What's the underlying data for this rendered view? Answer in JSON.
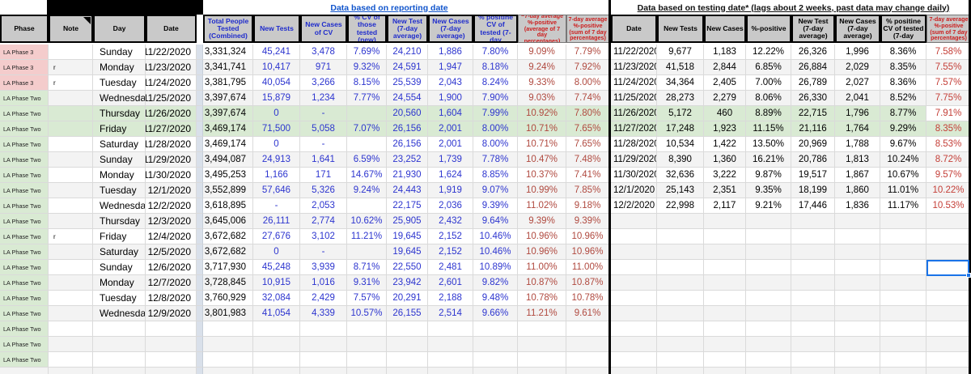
{
  "colors": {
    "header_bg": "#c9c9c9",
    "stripe": "#f3f3f3",
    "green_row": "#d9ead3",
    "pink_phase": "#f4cccc",
    "green_phase": "#d9ead3",
    "blue_text": "#2d35cf",
    "left_red_text": "#b0493f",
    "right_red_text": "#c43e37",
    "header_red_text": "#cc1d1d",
    "title_blue": "#1155cc",
    "selection_blue": "#1a73e8"
  },
  "left_section": {
    "title": "Data based on reporting date",
    "headers": [
      "Phase",
      "Note",
      "Day",
      "Date",
      "Total People Tested (Combined)",
      "New Tests",
      "New Cases of CV",
      "% CV of those tested (new)",
      "New Test (7-day average)",
      "New Cases (7-day average)",
      "% positine CV of tested (7-day",
      "~7-day average %-positive (average of 7 day percentages)",
      "7-day average %-positive (sum of 7 day percentages)"
    ],
    "rows": [
      [
        "LA Phase 3",
        "",
        "Sunday",
        "11/22/2020",
        "3,331,324",
        "45,241",
        "3,478",
        "7.69%",
        "24,210",
        "1,886",
        "7.80%",
        "9.09%",
        "7.79%"
      ],
      [
        "LA Phase 3",
        "r",
        "Monday",
        "11/23/2020",
        "3,341,741",
        "10,417",
        "971",
        "9.32%",
        "24,591",
        "1,947",
        "8.18%",
        "9.24%",
        "7.92%"
      ],
      [
        "LA Phase 3",
        "r",
        "Tuesday",
        "11/24/2020",
        "3,381,795",
        "40,054",
        "3,266",
        "8.15%",
        "25,539",
        "2,043",
        "8.24%",
        "9.33%",
        "8.00%"
      ],
      [
        "LA Phase Two",
        "",
        "Wednesday",
        "11/25/2020",
        "3,397,674",
        "15,879",
        "1,234",
        "7.77%",
        "24,554",
        "1,900",
        "7.90%",
        "9.03%",
        "7.74%"
      ],
      [
        "LA Phase Two",
        "",
        "Thursday",
        "11/26/2020",
        "3,397,674",
        "0",
        "-",
        "",
        "20,560",
        "1,604",
        "7.99%",
        "10.92%",
        "7.80%"
      ],
      [
        "LA Phase Two",
        "",
        "Friday",
        "11/27/2020",
        "3,469,174",
        "71,500",
        "5,058",
        "7.07%",
        "26,156",
        "2,001",
        "8.00%",
        "10.71%",
        "7.65%"
      ],
      [
        "LA Phase Two",
        "",
        "Saturday",
        "11/28/2020",
        "3,469,174",
        "0",
        "-",
        "",
        "26,156",
        "2,001",
        "8.00%",
        "10.71%",
        "7.65%"
      ],
      [
        "LA Phase Two",
        "",
        "Sunday",
        "11/29/2020",
        "3,494,087",
        "24,913",
        "1,641",
        "6.59%",
        "23,252",
        "1,739",
        "7.78%",
        "10.47%",
        "7.48%"
      ],
      [
        "LA Phase Two",
        "",
        "Monday",
        "11/30/2020",
        "3,495,253",
        "1,166",
        "171",
        "14.67%",
        "21,930",
        "1,624",
        "8.85%",
        "10.37%",
        "7.41%"
      ],
      [
        "LA Phase Two",
        "",
        "Tuesday",
        "12/1/2020",
        "3,552,899",
        "57,646",
        "5,326",
        "9.24%",
        "24,443",
        "1,919",
        "9.07%",
        "10.99%",
        "7.85%"
      ],
      [
        "LA Phase Two",
        "",
        "Wednesday",
        "12/2/2020",
        "3,618,895",
        "-",
        "2,053",
        "",
        "22,175",
        "2,036",
        "9.39%",
        "11.02%",
        "9.18%"
      ],
      [
        "LA Phase Two",
        "",
        "Thursday",
        "12/3/2020",
        "3,645,006",
        "26,111",
        "2,774",
        "10.62%",
        "25,905",
        "2,432",
        "9.64%",
        "9.39%",
        "9.39%"
      ],
      [
        "LA Phase Two",
        "r",
        "Friday",
        "12/4/2020",
        "3,672,682",
        "27,676",
        "3,102",
        "11.21%",
        "19,645",
        "2,152",
        "10.46%",
        "10.96%",
        "10.96%"
      ],
      [
        "LA Phase Two",
        "",
        "Saturday",
        "12/5/2020",
        "3,672,682",
        "0",
        "-",
        "",
        "19,645",
        "2,152",
        "10.46%",
        "10.96%",
        "10.96%"
      ],
      [
        "LA Phase Two",
        "",
        "Sunday",
        "12/6/2020",
        "3,717,930",
        "45,248",
        "3,939",
        "8.71%",
        "22,550",
        "2,481",
        "10.89%",
        "11.00%",
        "11.00%"
      ],
      [
        "LA Phase Two",
        "",
        "Monday",
        "12/7/2020",
        "3,728,845",
        "10,915",
        "1,016",
        "9.31%",
        "23,942",
        "2,601",
        "9.82%",
        "10.87%",
        "10.87%"
      ],
      [
        "LA Phase Two",
        "",
        "Tuesday",
        "12/8/2020",
        "3,760,929",
        "32,084",
        "2,429",
        "7.57%",
        "20,291",
        "2,188",
        "9.48%",
        "10.78%",
        "10.78%"
      ],
      [
        "LA Phase Two",
        "",
        "Wednesday",
        "12/9/2020",
        "3,801,983",
        "41,054",
        "4,339",
        "10.57%",
        "26,155",
        "2,514",
        "9.66%",
        "11.21%",
        "9.61%"
      ],
      [
        "LA Phase Two",
        "",
        "",
        "",
        "",
        "",
        "",
        "",
        "",
        "",
        "",
        "",
        ""
      ],
      [
        "LA Phase Two",
        "",
        "",
        "",
        "",
        "",
        "",
        "",
        "",
        "",
        "",
        "",
        ""
      ],
      [
        "LA Phase Two",
        "",
        "",
        "",
        "",
        "",
        "",
        "",
        "",
        "",
        "",
        "",
        ""
      ],
      [
        "",
        "",
        "",
        "",
        "",
        "",
        "",
        "",
        "",
        "",
        "",
        "",
        ""
      ]
    ],
    "green_row_indexes": [
      4,
      5
    ]
  },
  "right_section": {
    "title": "Data based on testing date*  (lags about 2 weeks, past data may change daily)",
    "headers": [
      "Date",
      "New Tests",
      "New Cases",
      "%-positive",
      "New Test (7-day average)",
      "New Cases (7-day average)",
      "% positine CV of tested (7-day",
      "7-day average %-positive (sum of 7 day percentages)"
    ],
    "rows": [
      [
        "11/22/2020",
        "9,677",
        "1,183",
        "12.22%",
        "26,326",
        "1,996",
        "8.36%",
        "7.58%"
      ],
      [
        "11/23/2020",
        "41,518",
        "2,844",
        "6.85%",
        "26,884",
        "2,029",
        "8.35%",
        "7.55%"
      ],
      [
        "11/24/2020",
        "34,364",
        "2,405",
        "7.00%",
        "26,789",
        "2,027",
        "8.36%",
        "7.57%"
      ],
      [
        "11/25/2020",
        "28,273",
        "2,279",
        "8.06%",
        "26,330",
        "2,041",
        "8.52%",
        "7.75%"
      ],
      [
        "11/26/2020",
        "5,172",
        "460",
        "8.89%",
        "22,715",
        "1,796",
        "8.77%",
        "7.91%"
      ],
      [
        "11/27/2020",
        "17,248",
        "1,923",
        "11.15%",
        "21,116",
        "1,764",
        "9.29%",
        "8.35%"
      ],
      [
        "11/28/2020",
        "10,534",
        "1,422",
        "13.50%",
        "20,969",
        "1,788",
        "9.67%",
        "8.53%"
      ],
      [
        "11/29/2020",
        "8,390",
        "1,360",
        "16.21%",
        "20,786",
        "1,813",
        "10.24%",
        "8.72%"
      ],
      [
        "11/30/2020",
        "32,636",
        "3,222",
        "9.87%",
        "19,517",
        "1,867",
        "10.67%",
        "9.57%"
      ],
      [
        "12/1/2020",
        "25,143",
        "2,351",
        "9.35%",
        "18,199",
        "1,860",
        "11.01%",
        "10.22%"
      ],
      [
        "12/2/2020",
        "22,998",
        "2,117",
        "9.21%",
        "17,446",
        "1,836",
        "11.17%",
        "10.53%"
      ],
      [
        "",
        "",
        "",
        "",
        "",
        "",
        "",
        ""
      ],
      [
        "",
        "",
        "",
        "",
        "",
        "",
        "",
        ""
      ],
      [
        "",
        "",
        "",
        "",
        "",
        "",
        "",
        ""
      ],
      [
        "",
        "",
        "",
        "",
        "",
        "",
        "",
        ""
      ],
      [
        "",
        "",
        "",
        "",
        "",
        "",
        "",
        ""
      ],
      [
        "",
        "",
        "",
        "",
        "",
        "",
        "",
        ""
      ],
      [
        "",
        "",
        "",
        "",
        "",
        "",
        "",
        ""
      ],
      [
        "",
        "",
        "",
        "",
        "",
        "",
        "",
        ""
      ],
      [
        "",
        "",
        "",
        "",
        "",
        "",
        "",
        ""
      ],
      [
        "",
        "",
        "",
        "",
        "",
        "",
        "",
        ""
      ],
      [
        "",
        "",
        "",
        "",
        "",
        "",
        "",
        ""
      ]
    ],
    "green_row_indexes": [
      4,
      5
    ],
    "green_row_white_last_cell_index": 4,
    "selected_cell": {
      "row_index": 14,
      "col_index": 7
    }
  }
}
